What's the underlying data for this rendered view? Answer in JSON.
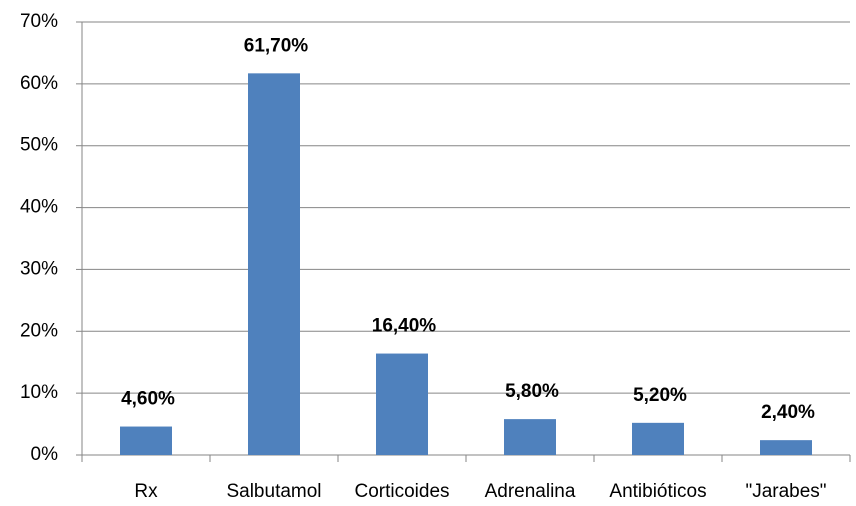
{
  "chart_data": {
    "type": "bar",
    "categories": [
      "Rx",
      "Salbutamol",
      "Corticoides",
      "Adrenalina",
      "Antibióticos",
      "\"Jarabes\""
    ],
    "values": [
      4.6,
      61.7,
      16.4,
      5.8,
      5.2,
      2.4
    ],
    "value_labels": [
      "4,60%",
      "61,70%",
      "16,40%",
      "5,80%",
      "5,20%",
      "2,40%"
    ],
    "color": "#4f81bd",
    "ylim": [
      0,
      70
    ],
    "yticks": [
      {
        "value": 0,
        "label": "0%"
      },
      {
        "value": 10,
        "label": "10%"
      },
      {
        "value": 20,
        "label": "20%"
      },
      {
        "value": 30,
        "label": "30%"
      },
      {
        "value": 40,
        "label": "40%"
      },
      {
        "value": 50,
        "label": "50%"
      },
      {
        "value": 60,
        "label": "60%"
      },
      {
        "value": 70,
        "label": "70%"
      }
    ],
    "grid": true
  }
}
